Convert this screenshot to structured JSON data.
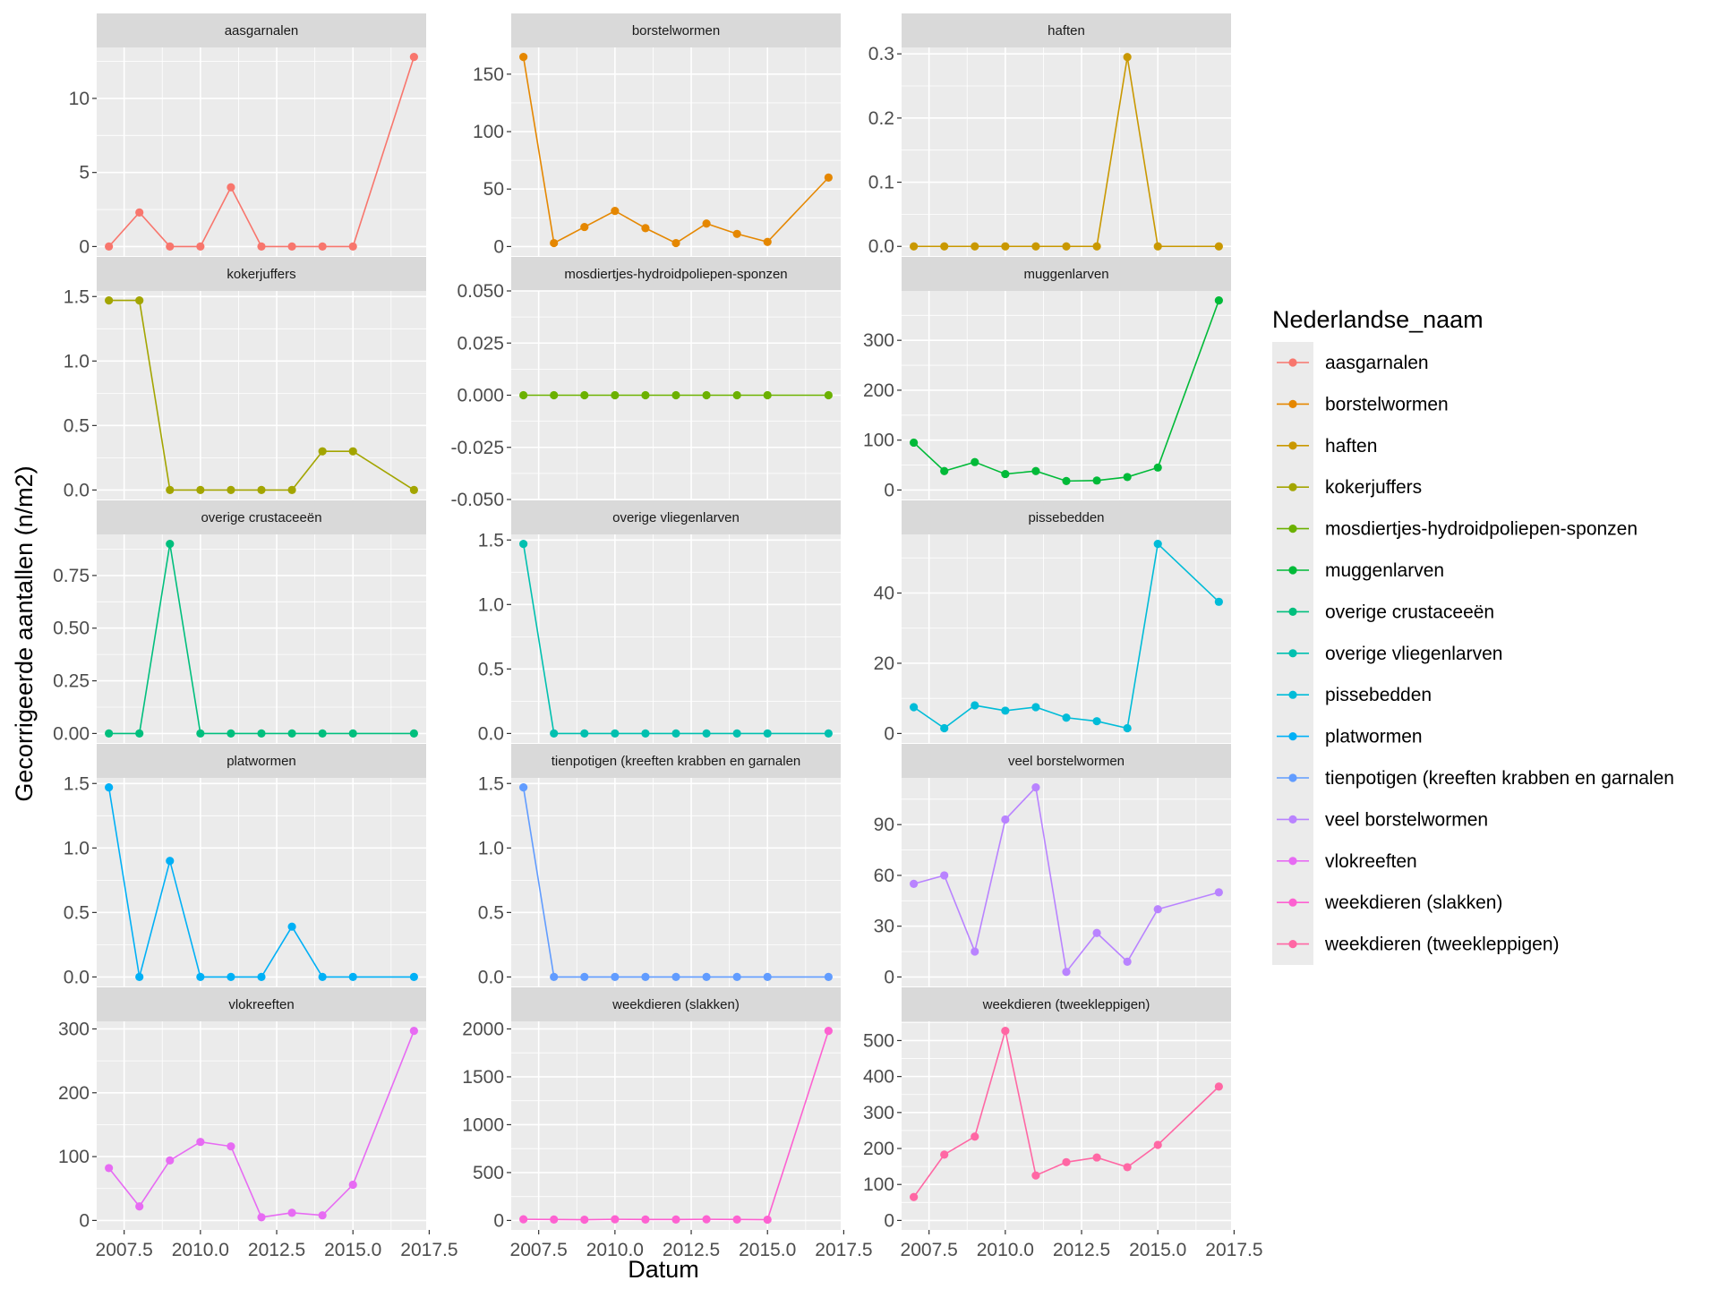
{
  "chart_data": {
    "type": "line",
    "xlabel": "Datum",
    "ylabel": "Gecorrigeerde aantallen (n/m2)",
    "legend_title": "Nederlandse_naam",
    "legend_position": "right",
    "grid": true,
    "facet_layout": "5 rows x 3 columns, free y scales",
    "xlim": [
      2006.6,
      2017.4
    ],
    "x_ticks": [
      2007.5,
      2010.0,
      2012.5,
      2015.0,
      2017.5
    ],
    "x_tick_labels": [
      "2007.5",
      "2010.0",
      "2012.5",
      "2015.0",
      "2017.5"
    ],
    "panels": [
      {
        "name": "aasgarnalen",
        "color": "#F8766D",
        "x": [
          2007,
          2008,
          2009,
          2010,
          2011,
          2012,
          2013,
          2014,
          2015,
          2017
        ],
        "y": [
          0,
          2.3,
          0,
          0,
          4.0,
          0,
          0,
          0,
          0,
          12.8
        ],
        "ylim": [
          -0.64,
          13.44
        ],
        "y_ticks": [
          0,
          5,
          10
        ],
        "y_tick_labels": [
          "0",
          "5",
          "10"
        ]
      },
      {
        "name": "borstelwormen",
        "color": "#E58700",
        "x": [
          2007,
          2008,
          2009,
          2010,
          2011,
          2012,
          2013,
          2014,
          2015,
          2017
        ],
        "y": [
          165,
          3,
          17,
          31,
          16,
          3,
          20,
          11,
          4,
          60
        ],
        "ylim": [
          -8.25,
          173.25
        ],
        "y_ticks": [
          0,
          50,
          100,
          150
        ],
        "y_tick_labels": [
          "0",
          "50",
          "100",
          "150"
        ]
      },
      {
        "name": "haften",
        "color": "#C99800",
        "x": [
          2007,
          2008,
          2009,
          2010,
          2011,
          2012,
          2013,
          2014,
          2015,
          2017
        ],
        "y": [
          0,
          0,
          0,
          0,
          0,
          0,
          0,
          0.295,
          0,
          0
        ],
        "ylim": [
          -0.015,
          0.31
        ],
        "y_ticks": [
          0.0,
          0.1,
          0.2,
          0.3
        ],
        "y_tick_labels": [
          "0.0",
          "0.1",
          "0.2",
          "0.3"
        ]
      },
      {
        "name": "kokerjuffers",
        "color": "#A3A500",
        "x": [
          2007,
          2008,
          2009,
          2010,
          2011,
          2012,
          2013,
          2014,
          2015,
          2017
        ],
        "y": [
          1.47,
          1.47,
          0,
          0,
          0,
          0,
          0,
          0.3,
          0.3,
          0
        ],
        "ylim": [
          -0.0735,
          1.5435
        ],
        "y_ticks": [
          0.0,
          0.5,
          1.0,
          1.5
        ],
        "y_tick_labels": [
          "0.0",
          "0.5",
          "1.0",
          "1.5"
        ]
      },
      {
        "name": "mosdiertjes-hydroidpoliepen-sponzen",
        "color": "#6BB100",
        "x": [
          2007,
          2008,
          2009,
          2010,
          2011,
          2012,
          2013,
          2014,
          2015,
          2017
        ],
        "y": [
          0,
          0,
          0,
          0,
          0,
          0,
          0,
          0,
          0,
          0
        ],
        "ylim": [
          -0.05,
          0.05
        ],
        "y_ticks": [
          -0.05,
          -0.025,
          0,
          0.025,
          0.05
        ],
        "y_tick_labels": [
          "-0.050",
          "-0.025",
          "0.000",
          "0.025",
          "0.050"
        ]
      },
      {
        "name": "muggenlarven",
        "color": "#00BA38",
        "x": [
          2007,
          2008,
          2009,
          2010,
          2011,
          2012,
          2013,
          2014,
          2015,
          2017
        ],
        "y": [
          95,
          38,
          56,
          32,
          38,
          18,
          19,
          26,
          45,
          380
        ],
        "ylim": [
          -19,
          399
        ],
        "y_ticks": [
          0,
          100,
          200,
          300
        ],
        "y_tick_labels": [
          "0",
          "100",
          "200",
          "300"
        ]
      },
      {
        "name": "overige crustaceeën",
        "color": "#00BF7D",
        "x": [
          2007,
          2008,
          2009,
          2010,
          2011,
          2012,
          2013,
          2014,
          2015,
          2017
        ],
        "y": [
          0,
          0,
          0.9,
          0,
          0,
          0,
          0,
          0,
          0,
          0
        ],
        "ylim": [
          -0.045,
          0.945
        ],
        "y_ticks": [
          0,
          0.25,
          0.5,
          0.75
        ],
        "y_tick_labels": [
          "0.00",
          "0.25",
          "0.50",
          "0.75"
        ]
      },
      {
        "name": "overige vliegenlarven",
        "color": "#00C0AF",
        "x": [
          2007,
          2008,
          2009,
          2010,
          2011,
          2012,
          2013,
          2014,
          2015,
          2017
        ],
        "y": [
          1.47,
          0,
          0,
          0,
          0,
          0,
          0,
          0,
          0,
          0
        ],
        "ylim": [
          -0.0735,
          1.5435
        ],
        "y_ticks": [
          0.0,
          0.5,
          1.0,
          1.5
        ],
        "y_tick_labels": [
          "0.0",
          "0.5",
          "1.0",
          "1.5"
        ]
      },
      {
        "name": "pissebedden",
        "color": "#00BCD8",
        "x": [
          2007,
          2008,
          2009,
          2010,
          2011,
          2012,
          2013,
          2014,
          2015,
          2017
        ],
        "y": [
          7.5,
          1.5,
          8,
          6.5,
          7.5,
          4.5,
          3.5,
          1.5,
          54,
          37.5
        ],
        "ylim": [
          -2.7,
          56.7
        ],
        "y_ticks": [
          0,
          20,
          40
        ],
        "y_tick_labels": [
          "0",
          "20",
          "40"
        ]
      },
      {
        "name": "platwormen",
        "color": "#00B0F6",
        "x": [
          2007,
          2008,
          2009,
          2010,
          2011,
          2012,
          2013,
          2014,
          2015,
          2017
        ],
        "y": [
          1.47,
          0,
          0.9,
          0,
          0,
          0,
          0.39,
          0,
          0,
          0
        ],
        "ylim": [
          -0.0735,
          1.5435
        ],
        "y_ticks": [
          0.0,
          0.5,
          1.0,
          1.5
        ],
        "y_tick_labels": [
          "0.0",
          "0.5",
          "1.0",
          "1.5"
        ]
      },
      {
        "name": "tienpotigen (kreeften krabben en garnalen",
        "color": "#619CFF",
        "x": [
          2007,
          2008,
          2009,
          2010,
          2011,
          2012,
          2013,
          2014,
          2015,
          2017
        ],
        "y": [
          1.47,
          0,
          0,
          0,
          0,
          0,
          0,
          0,
          0,
          0
        ],
        "ylim": [
          -0.0735,
          1.5435
        ],
        "y_ticks": [
          0.0,
          0.5,
          1.0,
          1.5
        ],
        "y_tick_labels": [
          "0.0",
          "0.5",
          "1.0",
          "1.5"
        ]
      },
      {
        "name": "veel borstelwormen",
        "color": "#B983FF",
        "x": [
          2007,
          2008,
          2009,
          2010,
          2011,
          2012,
          2013,
          2014,
          2015,
          2017
        ],
        "y": [
          55,
          60,
          15,
          93,
          112,
          3,
          26,
          9,
          40,
          50
        ],
        "ylim": [
          -5.6,
          117.6
        ],
        "y_ticks": [
          0,
          30,
          60,
          90
        ],
        "y_tick_labels": [
          "0",
          "30",
          "60",
          "90"
        ]
      },
      {
        "name": "vlokreeften",
        "color": "#E76BF3",
        "x": [
          2007,
          2008,
          2009,
          2010,
          2011,
          2012,
          2013,
          2014,
          2015,
          2017
        ],
        "y": [
          82,
          22,
          94,
          123,
          116,
          5,
          12,
          8,
          56,
          297
        ],
        "ylim": [
          -14.85,
          311.85
        ],
        "y_ticks": [
          0,
          100,
          200,
          300
        ],
        "y_tick_labels": [
          "0",
          "100",
          "200",
          "300"
        ]
      },
      {
        "name": "weekdieren (slakken)",
        "color": "#FD61D1",
        "x": [
          2007,
          2008,
          2009,
          2010,
          2011,
          2012,
          2013,
          2014,
          2015,
          2017
        ],
        "y": [
          12,
          10,
          8,
          12,
          10,
          10,
          12,
          10,
          8,
          1980
        ],
        "ylim": [
          -99,
          2079
        ],
        "y_ticks": [
          0,
          500,
          1000,
          1500,
          2000
        ],
        "y_tick_labels": [
          "0",
          "500",
          "1000",
          "1500",
          "2000"
        ]
      },
      {
        "name": "weekdieren (tweekleppigen)",
        "color": "#FF67A4",
        "x": [
          2007,
          2008,
          2009,
          2010,
          2011,
          2012,
          2013,
          2014,
          2015,
          2017
        ],
        "y": [
          65,
          183,
          233,
          527,
          125,
          162,
          175,
          148,
          210,
          372
        ],
        "ylim": [
          -26.35,
          553.35
        ],
        "y_ticks": [
          0,
          100,
          200,
          300,
          400,
          500
        ],
        "y_tick_labels": [
          "0",
          "100",
          "200",
          "300",
          "400",
          "500"
        ]
      }
    ]
  }
}
